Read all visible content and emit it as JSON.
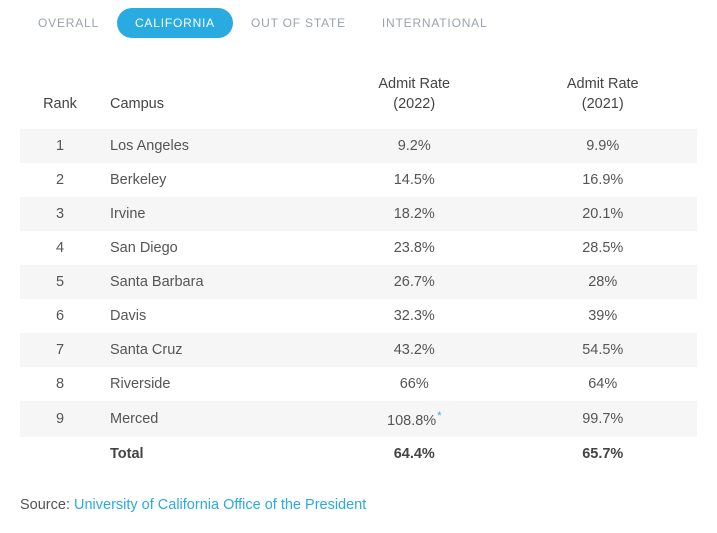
{
  "tabs": [
    {
      "label": "OVERALL",
      "active": false
    },
    {
      "label": "CALIFORNIA",
      "active": true
    },
    {
      "label": "OUT OF STATE",
      "active": false
    },
    {
      "label": "INTERNATIONAL",
      "active": false
    }
  ],
  "columns": {
    "rank": "Rank",
    "campus": "Campus",
    "rate2022_line1": "Admit Rate",
    "rate2022_line2": "(2022)",
    "rate2021_line1": "Admit Rate",
    "rate2021_line2": "(2021)"
  },
  "rows": [
    {
      "rank": "1",
      "campus": "Los Angeles",
      "rate2022": "9.2%",
      "rate2021": "9.9%",
      "note": false
    },
    {
      "rank": "2",
      "campus": "Berkeley",
      "rate2022": "14.5%",
      "rate2021": "16.9%",
      "note": false
    },
    {
      "rank": "3",
      "campus": "Irvine",
      "rate2022": "18.2%",
      "rate2021": "20.1%",
      "note": false
    },
    {
      "rank": "4",
      "campus": "San Diego",
      "rate2022": "23.8%",
      "rate2021": "28.5%",
      "note": false
    },
    {
      "rank": "5",
      "campus": "Santa Barbara",
      "rate2022": "26.7%",
      "rate2021": "28%",
      "note": false
    },
    {
      "rank": "6",
      "campus": "Davis",
      "rate2022": "32.3%",
      "rate2021": "39%",
      "note": false
    },
    {
      "rank": "7",
      "campus": "Santa Cruz",
      "rate2022": "43.2%",
      "rate2021": "54.5%",
      "note": false
    },
    {
      "rank": "8",
      "campus": "Riverside",
      "rate2022": "66%",
      "rate2021": "64%",
      "note": false
    },
    {
      "rank": "9",
      "campus": "Merced",
      "rate2022": "108.8%",
      "rate2021": "99.7%",
      "note": true
    }
  ],
  "total": {
    "label": "Total",
    "rate2022": "64.4%",
    "rate2021": "65.7%"
  },
  "source": {
    "prefix": "Source: ",
    "link_text": "University of California Office of the President"
  },
  "colors": {
    "accent": "#29abe2",
    "row_stripe": "#f6f6f6",
    "text": "#555555"
  }
}
